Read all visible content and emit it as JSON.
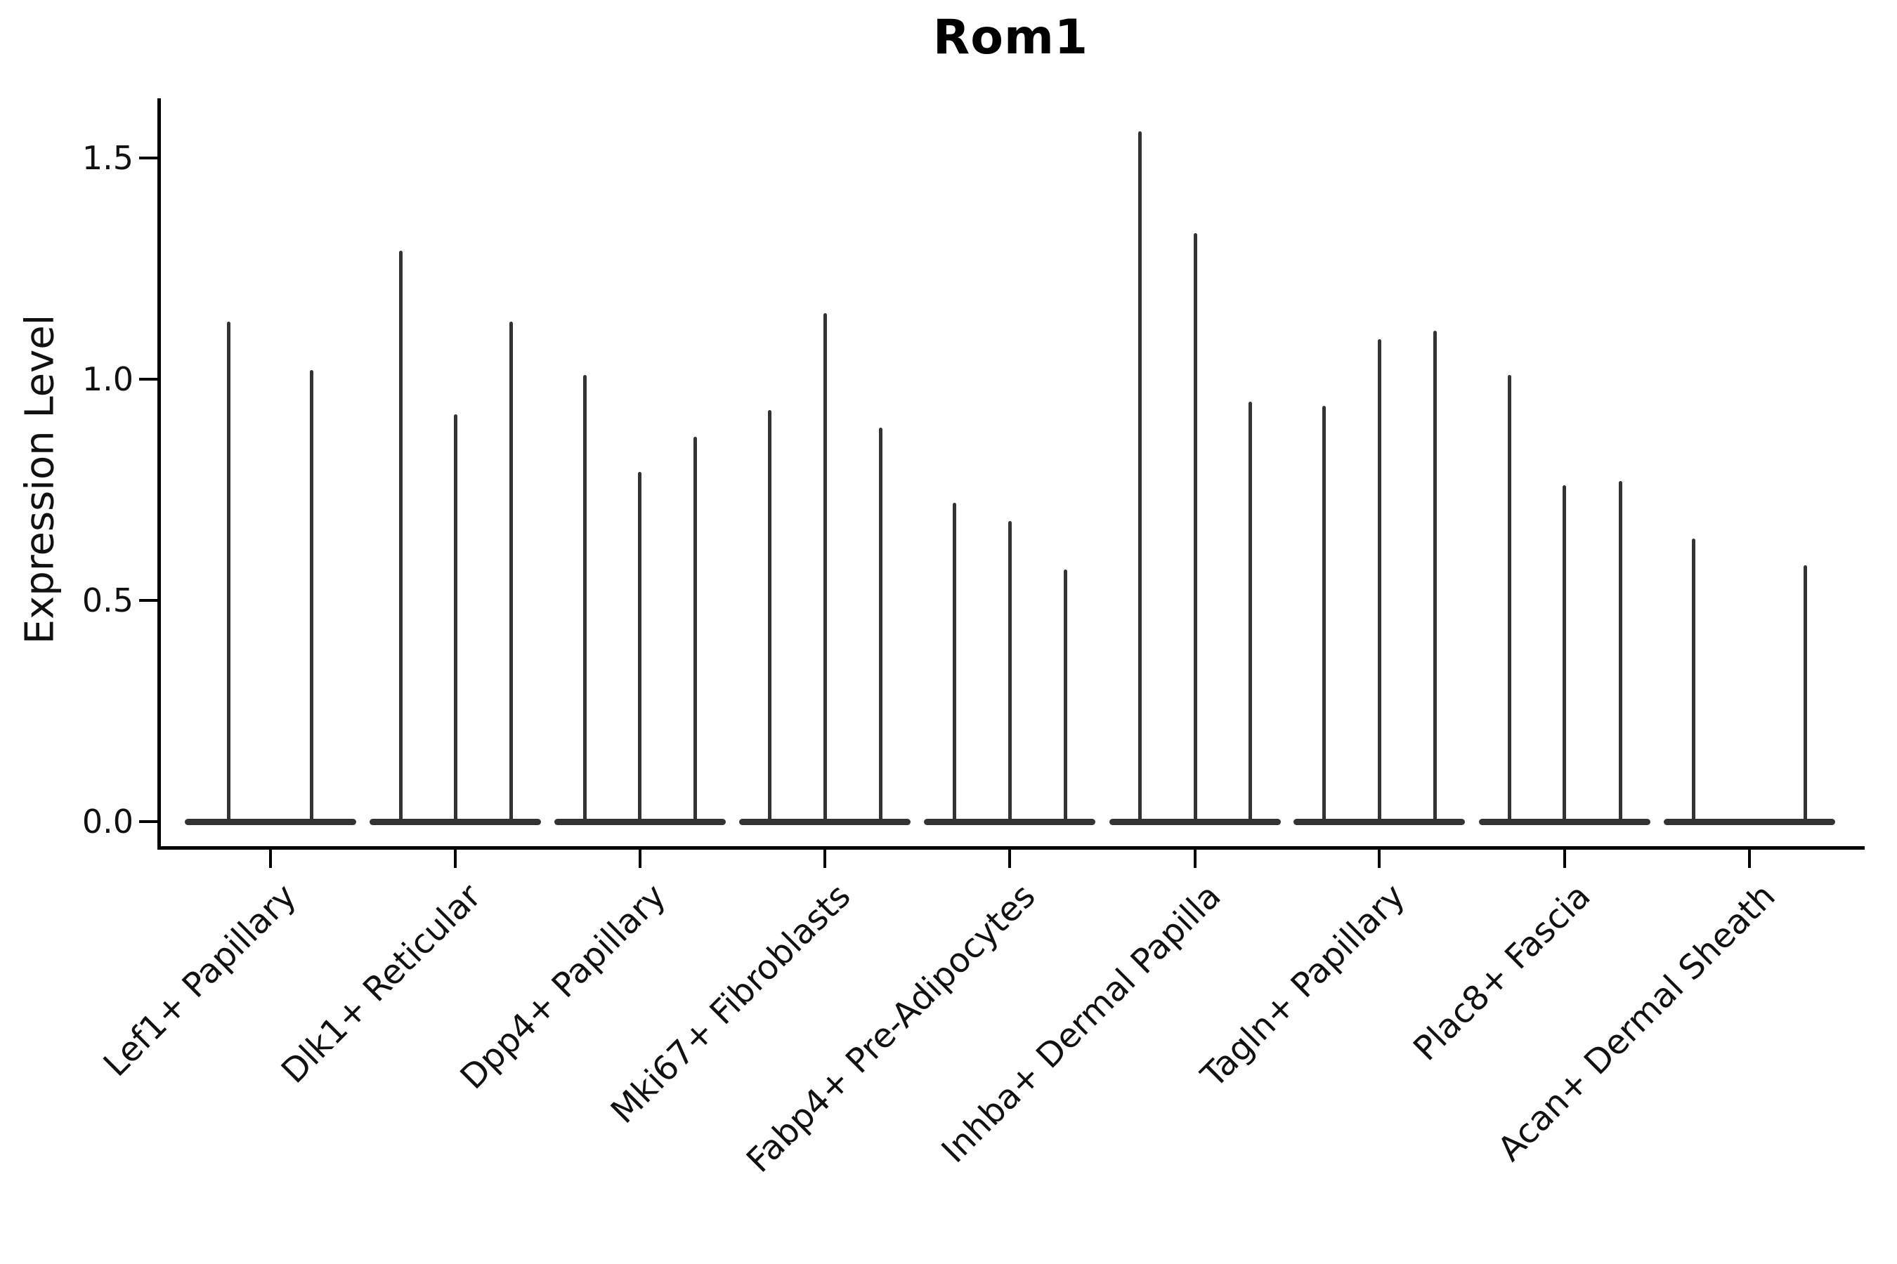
{
  "figure": {
    "title": "Rom1",
    "ylabel": "Expression Level"
  },
  "chart_data": {
    "type": "violin",
    "title": "Rom1",
    "subtitle": "",
    "xlabel": "",
    "ylabel": "Expression Level",
    "ylim": [
      0,
      1.65
    ],
    "yticks": [
      "0.0",
      "0.5",
      "1.0",
      "1.5"
    ],
    "ytick_values": [
      0.0,
      0.5,
      1.0,
      1.5
    ],
    "grid": false,
    "legend": "none",
    "description": "Sparse violin plot of Rom1 expression across dermal fibroblast cell types; each category shows 2-3 extremely thin violins (spikes) rising from a flat base at 0; 'max' is the top expression value reached by each violin spike.",
    "categories": [
      {
        "label": "Lef1+ Papillary",
        "center_x": 385,
        "violins": [
          {
            "x": 325,
            "max": 1.13
          },
          {
            "x": 443,
            "max": 1.02
          }
        ]
      },
      {
        "label": "Dlk1+ Reticular",
        "center_x": 648,
        "violins": [
          {
            "x": 570,
            "max": 1.29
          },
          {
            "x": 648,
            "max": 0.92
          },
          {
            "x": 727,
            "max": 1.13
          }
        ]
      },
      {
        "label": "Dpp4+ Papillary",
        "center_x": 911,
        "violins": [
          {
            "x": 832,
            "max": 1.01
          },
          {
            "x": 910,
            "max": 0.79
          },
          {
            "x": 989,
            "max": 0.87
          }
        ]
      },
      {
        "label": "Mki67+ Fibroblasts",
        "center_x": 1174,
        "violins": [
          {
            "x": 1095,
            "max": 0.93
          },
          {
            "x": 1174,
            "max": 1.15
          },
          {
            "x": 1253,
            "max": 0.89
          }
        ]
      },
      {
        "label": "Fabp4+ Pre-Adipocytes",
        "center_x": 1437,
        "violins": [
          {
            "x": 1358,
            "max": 0.72
          },
          {
            "x": 1437,
            "max": 0.68
          },
          {
            "x": 1516,
            "max": 0.57
          }
        ]
      },
      {
        "label": "Inhba+ Dermal Papilla",
        "center_x": 1701,
        "violins": [
          {
            "x": 1622,
            "max": 1.56
          },
          {
            "x": 1701,
            "max": 1.33
          },
          {
            "x": 1779,
            "max": 0.95
          }
        ]
      },
      {
        "label": "Tagln+ Papillary",
        "center_x": 1963,
        "violins": [
          {
            "x": 1884,
            "max": 0.94
          },
          {
            "x": 1963,
            "max": 1.09
          },
          {
            "x": 2042,
            "max": 1.11
          }
        ]
      },
      {
        "label": "Plac8+ Fascia",
        "center_x": 2227,
        "violins": [
          {
            "x": 2148,
            "max": 1.01
          },
          {
            "x": 2226,
            "max": 0.76
          },
          {
            "x": 2306,
            "max": 0.77
          }
        ]
      },
      {
        "label": "Acan+ Dermal Sheath",
        "center_x": 2490,
        "violins": [
          {
            "x": 2410,
            "max": 0.64
          },
          {
            "x": 2569,
            "max": 0.58
          }
        ]
      }
    ],
    "colors": {
      "spike": "#333333",
      "baseline": "#333333",
      "axis": "#000000",
      "text": "#111111",
      "background": "#ffffff"
    }
  }
}
